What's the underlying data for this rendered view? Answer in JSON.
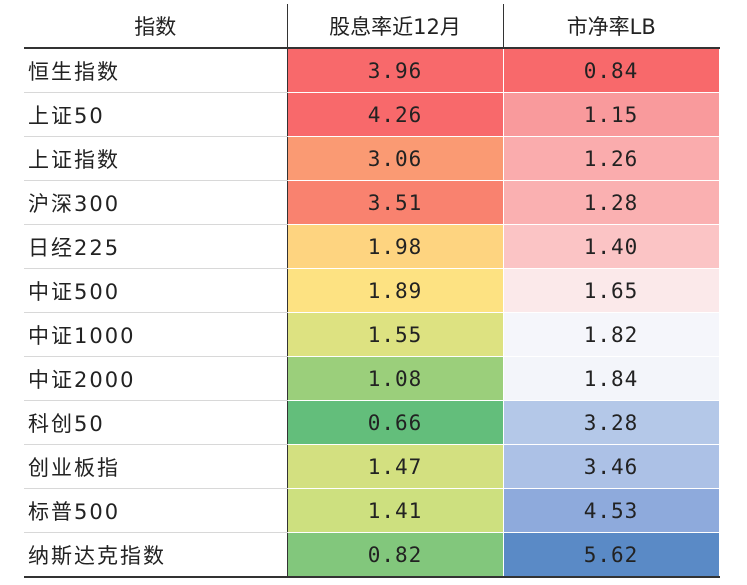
{
  "headers": {
    "name": "指数",
    "dividend_yield": "股息率近12月",
    "pb": "市净率LB"
  },
  "rows": [
    {
      "name": "恒生指数",
      "dividend_yield": "3.96",
      "pb": "0.84",
      "dy_color": "#f8696b",
      "pb_color": "#f8696b"
    },
    {
      "name": "上证50",
      "dividend_yield": "4.26",
      "pb": "1.15",
      "dy_color": "#f8696b",
      "pb_color": "#f99a9c"
    },
    {
      "name": "上证指数",
      "dividend_yield": "3.06",
      "pb": "1.26",
      "dy_color": "#fa9a73",
      "pb_color": "#faacad"
    },
    {
      "name": "沪深300",
      "dividend_yield": "3.51",
      "pb": "1.28",
      "dy_color": "#f9826f",
      "pb_color": "#fab0b1"
    },
    {
      "name": "日经225",
      "dividend_yield": "1.98",
      "pb": "1.40",
      "dy_color": "#fed480",
      "pb_color": "#fbc4c5"
    },
    {
      "name": "中证500",
      "dividend_yield": "1.89",
      "pb": "1.65",
      "dy_color": "#fde282",
      "pb_color": "#fbe9ea"
    },
    {
      "name": "中证1000",
      "dividend_yield": "1.55",
      "pb": "1.82",
      "dy_color": "#dde281",
      "pb_color": "#f5f6fb"
    },
    {
      "name": "中证2000",
      "dividend_yield": "1.08",
      "pb": "1.84",
      "dy_color": "#9bcf7b",
      "pb_color": "#f3f5fa"
    },
    {
      "name": "科创50",
      "dividend_yield": "0.66",
      "pb": "3.28",
      "dy_color": "#63be7b",
      "pb_color": "#b4c8e8"
    },
    {
      "name": "创业板指",
      "dividend_yield": "1.47",
      "pb": "3.46",
      "dy_color": "#d3e080",
      "pb_color": "#acc1e6"
    },
    {
      "name": "标普500",
      "dividend_yield": "1.41",
      "pb": "4.53",
      "dy_color": "#cde07f",
      "pb_color": "#8eaadc"
    },
    {
      "name": "纳斯达克指数",
      "dividend_yield": "0.82",
      "pb": "5.62",
      "dy_color": "#82c77c",
      "pb_color": "#5a8ac6"
    }
  ]
}
